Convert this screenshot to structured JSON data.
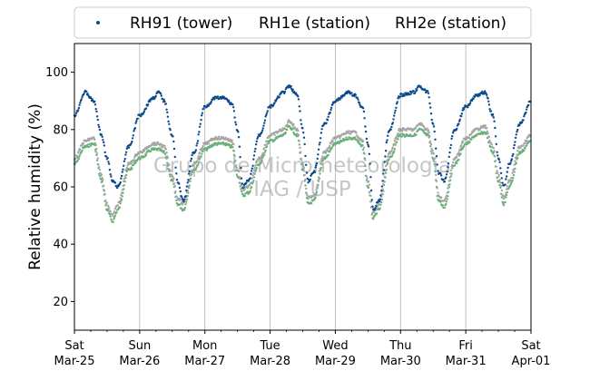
{
  "chart_data": {
    "type": "scatter",
    "ylabel": "Relative humidity (%)",
    "ylim": [
      10,
      110
    ],
    "xlim": [
      "2025-03-25",
      "2025-04-01"
    ],
    "yticks": [
      20,
      40,
      60,
      80,
      100
    ],
    "xticks": [
      {
        "day": "Sat",
        "date": "Mar-25"
      },
      {
        "day": "Sun",
        "date": "Mar-26"
      },
      {
        "day": "Mon",
        "date": "Mar-27"
      },
      {
        "day": "Tue",
        "date": "Mar-28"
      },
      {
        "day": "Wed",
        "date": "Mar-29"
      },
      {
        "day": "Thu",
        "date": "Mar-30"
      },
      {
        "day": "Fri",
        "date": "Mar-31"
      },
      {
        "day": "Sat",
        "date": "Apr-01"
      }
    ],
    "grid": "vertical",
    "legend_position": "top",
    "watermark": [
      "Grupo de Micrometeorologia",
      "IAG / USP"
    ],
    "series": [
      {
        "name": "RH91 (tower)",
        "color": "#0b4a8b",
        "x": [
          "2025-03-25 00:00",
          "2025-03-25 04:00",
          "2025-03-25 07:00",
          "2025-03-25 10:00",
          "2025-03-25 12:00",
          "2025-03-25 14:00",
          "2025-03-25 16:00",
          "2025-03-25 20:00",
          "2025-03-26 00:00",
          "2025-03-26 05:00",
          "2025-03-26 07:00",
          "2025-03-26 09:00",
          "2025-03-26 12:00",
          "2025-03-26 14:00",
          "2025-03-26 16:00",
          "2025-03-26 20:00",
          "2025-03-27 00:00",
          "2025-03-27 04:00",
          "2025-03-27 07:00",
          "2025-03-27 10:00",
          "2025-03-27 12:00",
          "2025-03-27 14:00",
          "2025-03-27 16:00",
          "2025-03-27 20:00",
          "2025-03-28 00:00",
          "2025-03-28 05:00",
          "2025-03-28 07:00",
          "2025-03-28 10:00",
          "2025-03-28 12:00",
          "2025-03-28 14:00",
          "2025-03-28 16:00",
          "2025-03-28 20:00",
          "2025-03-29 00:00",
          "2025-03-29 05:00",
          "2025-03-29 07:00",
          "2025-03-29 10:00",
          "2025-03-29 12:00",
          "2025-03-29 14:00",
          "2025-03-29 16:00",
          "2025-03-29 20:00",
          "2025-03-30 00:00",
          "2025-03-30 05:00",
          "2025-03-30 07:00",
          "2025-03-30 10:00",
          "2025-03-30 12:00",
          "2025-03-30 14:00",
          "2025-03-30 16:00",
          "2025-03-30 20:00",
          "2025-03-31 00:00",
          "2025-03-31 04:00",
          "2025-03-31 07:00",
          "2025-03-31 10:00",
          "2025-03-31 12:00",
          "2025-03-31 14:00",
          "2025-03-31 16:00",
          "2025-03-31 20:00",
          "2025-04-01 00:00"
        ],
        "y": [
          85,
          93,
          90,
          78,
          70,
          62,
          60,
          74,
          85,
          91,
          93,
          90,
          78,
          62,
          55,
          72,
          88,
          91,
          91,
          89,
          80,
          60,
          62,
          78,
          88,
          93,
          95,
          92,
          80,
          62,
          65,
          82,
          90,
          93,
          92,
          88,
          75,
          52,
          55,
          80,
          92,
          93,
          95,
          93,
          82,
          65,
          62,
          80,
          88,
          92,
          93,
          85,
          70,
          60,
          68,
          82,
          90
        ]
      },
      {
        "name": "RH1e (station)",
        "color": "#6ab07a",
        "x": [
          "2025-03-25 00:00",
          "2025-03-25 04:00",
          "2025-03-25 07:00",
          "2025-03-25 10:00",
          "2025-03-25 12:00",
          "2025-03-25 14:00",
          "2025-03-25 16:00",
          "2025-03-25 20:00",
          "2025-03-26 00:00",
          "2025-03-26 05:00",
          "2025-03-26 07:00",
          "2025-03-26 09:00",
          "2025-03-26 12:00",
          "2025-03-26 14:00",
          "2025-03-26 16:00",
          "2025-03-26 20:00",
          "2025-03-27 00:00",
          "2025-03-27 04:00",
          "2025-03-27 07:00",
          "2025-03-27 10:00",
          "2025-03-27 12:00",
          "2025-03-27 14:00",
          "2025-03-27 16:00",
          "2025-03-27 20:00",
          "2025-03-28 00:00",
          "2025-03-28 05:00",
          "2025-03-28 07:00",
          "2025-03-28 10:00",
          "2025-03-28 12:00",
          "2025-03-28 14:00",
          "2025-03-28 16:00",
          "2025-03-28 20:00",
          "2025-03-29 00:00",
          "2025-03-29 05:00",
          "2025-03-29 07:00",
          "2025-03-29 10:00",
          "2025-03-29 12:00",
          "2025-03-29 14:00",
          "2025-03-29 16:00",
          "2025-03-29 20:00",
          "2025-03-30 00:00",
          "2025-03-30 05:00",
          "2025-03-30 07:00",
          "2025-03-30 10:00",
          "2025-03-30 12:00",
          "2025-03-30 14:00",
          "2025-03-30 16:00",
          "2025-03-30 20:00",
          "2025-03-31 00:00",
          "2025-03-31 04:00",
          "2025-03-31 07:00",
          "2025-03-31 10:00",
          "2025-03-31 12:00",
          "2025-03-31 14:00",
          "2025-03-31 16:00",
          "2025-03-31 20:00",
          "2025-04-01 00:00"
        ],
        "y": [
          68,
          74,
          75,
          62,
          52,
          48,
          52,
          66,
          70,
          73,
          73,
          72,
          62,
          54,
          52,
          66,
          73,
          75,
          75,
          74,
          64,
          57,
          58,
          68,
          76,
          78,
          81,
          78,
          66,
          54,
          55,
          70,
          75,
          77,
          77,
          74,
          60,
          49,
          52,
          70,
          78,
          78,
          80,
          78,
          70,
          55,
          53,
          68,
          75,
          78,
          79,
          72,
          62,
          54,
          60,
          72,
          76
        ]
      },
      {
        "name": "RH2e (station)",
        "color": "#a5a5a5",
        "x": [
          "2025-03-25 00:00",
          "2025-03-25 04:00",
          "2025-03-25 07:00",
          "2025-03-25 10:00",
          "2025-03-25 12:00",
          "2025-03-25 14:00",
          "2025-03-25 16:00",
          "2025-03-25 20:00",
          "2025-03-26 00:00",
          "2025-03-26 05:00",
          "2025-03-26 07:00",
          "2025-03-26 09:00",
          "2025-03-26 12:00",
          "2025-03-26 14:00",
          "2025-03-26 16:00",
          "2025-03-26 20:00",
          "2025-03-27 00:00",
          "2025-03-27 04:00",
          "2025-03-27 07:00",
          "2025-03-27 10:00",
          "2025-03-27 12:00",
          "2025-03-27 14:00",
          "2025-03-27 16:00",
          "2025-03-27 20:00",
          "2025-03-28 00:00",
          "2025-03-28 05:00",
          "2025-03-28 07:00",
          "2025-03-28 10:00",
          "2025-03-28 12:00",
          "2025-03-28 14:00",
          "2025-03-28 16:00",
          "2025-03-28 20:00",
          "2025-03-29 00:00",
          "2025-03-29 05:00",
          "2025-03-29 07:00",
          "2025-03-29 10:00",
          "2025-03-29 12:00",
          "2025-03-29 14:00",
          "2025-03-29 16:00",
          "2025-03-29 20:00",
          "2025-03-30 00:00",
          "2025-03-30 05:00",
          "2025-03-30 07:00",
          "2025-03-30 10:00",
          "2025-03-30 12:00",
          "2025-03-30 14:00",
          "2025-03-30 16:00",
          "2025-03-30 20:00",
          "2025-03-31 00:00",
          "2025-03-31 04:00",
          "2025-03-31 07:00",
          "2025-03-31 10:00",
          "2025-03-31 12:00",
          "2025-03-31 14:00",
          "2025-03-31 16:00",
          "2025-03-31 20:00",
          "2025-04-01 00:00"
        ],
        "y": [
          70,
          76,
          77,
          64,
          54,
          50,
          54,
          68,
          72,
          75,
          75,
          74,
          64,
          56,
          54,
          68,
          75,
          77,
          77,
          76,
          66,
          59,
          60,
          70,
          78,
          80,
          83,
          80,
          68,
          56,
          57,
          72,
          77,
          79,
          79,
          76,
          62,
          51,
          54,
          72,
          80,
          80,
          82,
          80,
          72,
          57,
          55,
          70,
          77,
          80,
          81,
          74,
          64,
          56,
          62,
          74,
          78
        ]
      }
    ]
  }
}
